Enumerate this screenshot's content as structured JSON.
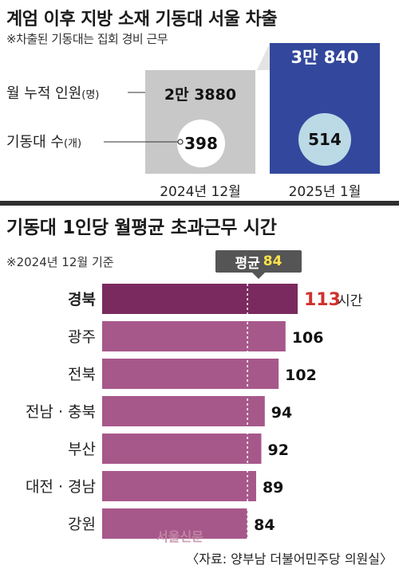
{
  "section1": {
    "title": "계엄 이후 지방 소재 기동대 서울 차출",
    "note": "※차출된 기동대는 집회 경비 근무",
    "row_labels": {
      "monthly_label": "월 누적 인원",
      "monthly_unit": "(명)",
      "count_label": "기동대 수",
      "count_unit": "(개)"
    },
    "periods": [
      {
        "label": "2024년 12월",
        "monthly": "2만 3880",
        "units": "398"
      },
      {
        "label": "2025년 1월",
        "monthly": "3만 840",
        "units": "514"
      }
    ],
    "colors": {
      "dec": "#c8c8c8",
      "jan": "#33489c",
      "jan_circle": "#bcd9e6"
    }
  },
  "section2": {
    "title": "기동대 1인당 월평균 초과근무 시간",
    "note": "※2024년 12월 기준",
    "avg_label": "평균",
    "avg_value": "84",
    "unit": "시간",
    "source": "〈자료: 양부남 더불어민주당 의원실〉",
    "watermark": "서울신문"
  },
  "chart_data": [
    {
      "type": "table",
      "title": "계엄 이후 지방 소재 기동대 서울 차출",
      "columns": [
        "2024년 12월",
        "2025년 1월"
      ],
      "rows": [
        {
          "label": "월 누적 인원(명)",
          "values": [
            23880,
            30840
          ]
        },
        {
          "label": "기동대 수(개)",
          "values": [
            398,
            514
          ]
        }
      ]
    },
    {
      "type": "bar",
      "orientation": "horizontal",
      "title": "기동대 1인당 월평균 초과근무 시간",
      "categories": [
        "경북",
        "광주",
        "전북",
        "전남 · 충북",
        "부산",
        "대전 · 경남",
        "강원"
      ],
      "values": [
        113,
        106,
        102,
        94,
        92,
        89,
        84
      ],
      "reference_line": {
        "label": "평균",
        "value": 84
      },
      "xlim": [
        0,
        113
      ],
      "colors": {
        "bar": "#a7588a",
        "highlight_bar": "#7a2a5e",
        "highlight_value": "#d0312d"
      }
    }
  ]
}
